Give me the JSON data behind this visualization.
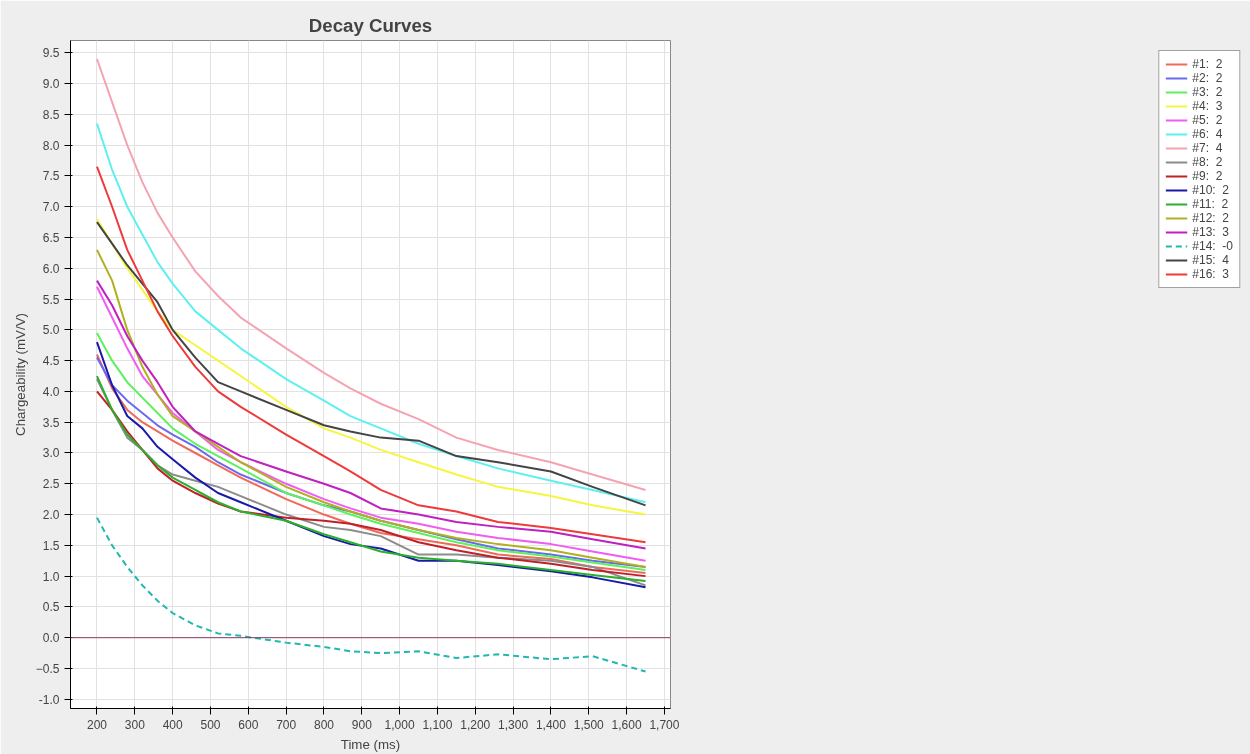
{
  "chart_data": {
    "type": "line",
    "title": "Decay Curves",
    "xlabel": "Time (ms)",
    "ylabel": "Chargeability (mV/V)",
    "x": [
      200,
      240,
      280,
      320,
      360,
      400,
      460,
      520,
      580,
      700,
      800,
      870,
      950,
      1050,
      1150,
      1260,
      1400,
      1510,
      1650
    ],
    "xlim": [
      130,
      1716
    ],
    "ylim": [
      -1.15,
      9.7
    ],
    "xticks": [
      200,
      300,
      400,
      500,
      600,
      700,
      800,
      900,
      {
        "value": 1000,
        "label": "1,000"
      },
      {
        "value": 1100,
        "label": "1,100"
      },
      {
        "value": 1200,
        "label": "1,200"
      },
      {
        "value": 1300,
        "label": "1,300"
      },
      {
        "value": 1400,
        "label": "1,400"
      },
      {
        "value": 1500,
        "label": "1,500"
      },
      {
        "value": 1600,
        "label": "1,600"
      },
      {
        "value": 1700,
        "label": "1,700"
      }
    ],
    "yticks": [
      {
        "value": -1,
        "label": "-1.0"
      },
      -0.5,
      {
        "value": 0,
        "label": "0.0"
      },
      0.5,
      {
        "value": 1,
        "label": "1.0"
      },
      1.5,
      {
        "value": 2,
        "label": "2.0"
      },
      2.5,
      {
        "value": 3,
        "label": "3.0"
      },
      3.5,
      {
        "value": 4,
        "label": "4.0"
      },
      4.5,
      {
        "value": 5,
        "label": "5.0"
      },
      5.5,
      {
        "value": 6,
        "label": "6.0"
      },
      6.5,
      {
        "value": 7,
        "label": "7.0"
      },
      7.5,
      {
        "value": 8,
        "label": "8.0"
      },
      8.5,
      {
        "value": 9,
        "label": "9.0"
      },
      9.5
    ],
    "grid": true,
    "legend": "right",
    "marker": "none",
    "line_style": "solid",
    "ref_lines": [
      {
        "axis": "y",
        "value": 0,
        "color": "#8b3a62"
      }
    ],
    "series": [
      {
        "name": "#1:  2",
        "color": "#f06a5a",
        "values": [
          4.6,
          4.05,
          3.7,
          3.5,
          3.35,
          3.2,
          3.0,
          2.8,
          2.6,
          2.25,
          2.0,
          1.85,
          1.7,
          1.6,
          1.5,
          1.35,
          1.28,
          1.15,
          1.05
        ]
      },
      {
        "name": "#2:  2",
        "color": "#6a6aee",
        "values": [
          4.55,
          4.1,
          3.85,
          3.65,
          3.45,
          3.3,
          3.1,
          2.85,
          2.65,
          2.35,
          2.15,
          2.05,
          1.9,
          1.75,
          1.6,
          1.45,
          1.35,
          1.25,
          1.15
        ]
      },
      {
        "name": "#3:  2",
        "color": "#5cf25c",
        "values": [
          4.95,
          4.5,
          4.15,
          3.9,
          3.65,
          3.4,
          3.15,
          2.95,
          2.75,
          2.35,
          2.15,
          2.0,
          1.85,
          1.7,
          1.55,
          1.42,
          1.32,
          1.22,
          1.1
        ]
      },
      {
        "name": "#4:  3",
        "color": "#f5f542",
        "values": [
          6.8,
          6.4,
          6.0,
          5.65,
          5.3,
          5.0,
          4.75,
          4.5,
          4.25,
          3.75,
          3.4,
          3.25,
          3.05,
          2.85,
          2.65,
          2.45,
          2.3,
          2.15,
          2.0
        ]
      },
      {
        "name": "#5:  2",
        "color": "#f25cf2",
        "values": [
          5.7,
          5.2,
          4.7,
          4.25,
          3.95,
          3.65,
          3.35,
          3.05,
          2.85,
          2.5,
          2.25,
          2.1,
          1.95,
          1.85,
          1.72,
          1.62,
          1.52,
          1.4,
          1.25
        ]
      },
      {
        "name": "#6:  4",
        "color": "#5ef0f0",
        "values": [
          8.35,
          7.6,
          7.0,
          6.55,
          6.1,
          5.75,
          5.3,
          5.0,
          4.7,
          4.2,
          3.85,
          3.6,
          3.4,
          3.15,
          2.95,
          2.75,
          2.55,
          2.4,
          2.2
        ]
      },
      {
        "name": "#7:  4",
        "color": "#f4a4b0",
        "values": [
          9.4,
          8.7,
          8.0,
          7.4,
          6.9,
          6.5,
          5.95,
          5.55,
          5.2,
          4.7,
          4.3,
          4.05,
          3.8,
          3.55,
          3.25,
          3.05,
          2.85,
          2.65,
          2.4
        ]
      },
      {
        "name": "#8:  2",
        "color": "#8c8c8c",
        "values": [
          4.2,
          3.7,
          3.25,
          3.05,
          2.8,
          2.65,
          2.55,
          2.45,
          2.3,
          2.0,
          1.8,
          1.75,
          1.65,
          1.35,
          1.35,
          1.3,
          1.25,
          1.15,
          0.85
        ]
      },
      {
        "name": "#9:  2",
        "color": "#c0202a",
        "values": [
          4.0,
          3.7,
          3.35,
          3.05,
          2.75,
          2.55,
          2.35,
          2.18,
          2.05,
          1.95,
          1.9,
          1.85,
          1.75,
          1.55,
          1.42,
          1.3,
          1.2,
          1.1,
          1.0
        ]
      },
      {
        "name": "#10:  2",
        "color": "#1a1aa8",
        "values": [
          4.8,
          4.1,
          3.6,
          3.4,
          3.1,
          2.9,
          2.6,
          2.35,
          2.2,
          1.9,
          1.65,
          1.52,
          1.45,
          1.25,
          1.25,
          1.18,
          1.08,
          0.98,
          0.82
        ]
      },
      {
        "name": "#11:  2",
        "color": "#2ab02a",
        "values": [
          4.25,
          3.7,
          3.3,
          3.05,
          2.8,
          2.6,
          2.4,
          2.2,
          2.05,
          1.9,
          1.68,
          1.55,
          1.4,
          1.3,
          1.25,
          1.2,
          1.1,
          1.02,
          0.92
        ]
      },
      {
        "name": "#12:  2",
        "color": "#b0b020",
        "values": [
          6.3,
          5.8,
          5.0,
          4.4,
          3.95,
          3.6,
          3.35,
          3.1,
          2.85,
          2.45,
          2.2,
          2.05,
          1.9,
          1.75,
          1.62,
          1.52,
          1.42,
          1.3,
          1.15
        ]
      },
      {
        "name": "#13:  3",
        "color": "#c020c0",
        "values": [
          5.8,
          5.4,
          4.9,
          4.5,
          4.15,
          3.75,
          3.35,
          3.15,
          2.95,
          2.7,
          2.5,
          2.35,
          2.1,
          2.0,
          1.88,
          1.8,
          1.72,
          1.6,
          1.45
        ]
      },
      {
        "name": "#14:  -0",
        "color": "#20b8b0",
        "line_style": "dashed",
        "values": [
          1.95,
          1.5,
          1.15,
          0.85,
          0.6,
          0.4,
          0.2,
          0.07,
          0.03,
          -0.08,
          -0.15,
          -0.22,
          -0.25,
          -0.22,
          -0.33,
          -0.27,
          -0.35,
          -0.3,
          -0.55
        ]
      },
      {
        "name": "#15:  4",
        "color": "#444444",
        "values": [
          6.75,
          6.4,
          6.05,
          5.75,
          5.45,
          5.0,
          4.55,
          4.15,
          4.0,
          3.7,
          3.45,
          3.35,
          3.25,
          3.2,
          2.95,
          2.85,
          2.7,
          2.45,
          2.15
        ]
      },
      {
        "name": "#16:  3",
        "color": "#ee3a3a",
        "values": [
          7.65,
          7.0,
          6.3,
          5.8,
          5.3,
          4.9,
          4.4,
          4.0,
          3.75,
          3.3,
          2.95,
          2.7,
          2.4,
          2.15,
          2.05,
          1.88,
          1.78,
          1.68,
          1.55
        ]
      }
    ]
  }
}
